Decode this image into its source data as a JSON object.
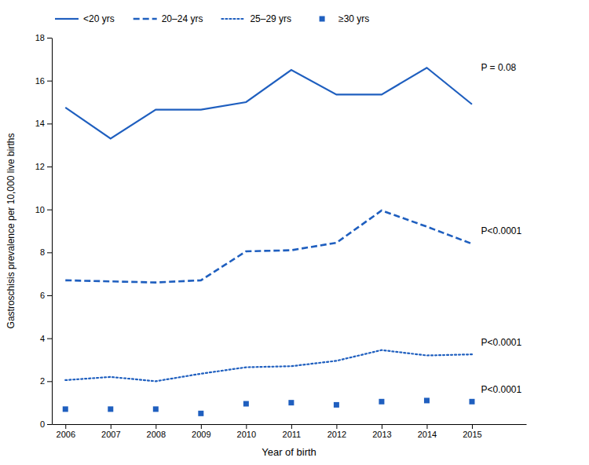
{
  "chart_data": {
    "type": "line",
    "x": [
      2006,
      2007,
      2008,
      2009,
      2010,
      2011,
      2012,
      2013,
      2014,
      2015
    ],
    "series": [
      {
        "name": "<20 yrs",
        "color": "#1f5fbf",
        "line_style": "solid",
        "values": [
          14.75,
          13.3,
          14.65,
          14.65,
          15.0,
          16.5,
          15.35,
          15.35,
          16.6,
          14.9
        ]
      },
      {
        "name": "20–24 yrs",
        "color": "#1f5fbf",
        "line_style": "dashed",
        "values": [
          6.7,
          6.65,
          6.6,
          6.7,
          8.05,
          8.1,
          8.45,
          9.95,
          9.2,
          8.4
        ]
      },
      {
        "name": "25–29 yrs",
        "color": "#1f5fbf",
        "line_style": "dotted",
        "values": [
          2.05,
          2.2,
          2.0,
          2.35,
          2.65,
          2.7,
          2.95,
          3.45,
          3.2,
          3.25
        ]
      },
      {
        "name": "≥30 yrs",
        "color": "#1f5fbf",
        "line_style": "none",
        "marker": "square",
        "values": [
          0.7,
          0.7,
          0.7,
          0.5,
          0.95,
          1.0,
          0.9,
          1.05,
          1.1,
          1.05
        ]
      }
    ],
    "xlabel": "Year of birth",
    "ylabel": "Gastroschisis prevalence per 10,000 live births",
    "xlim": [
      2005.7,
      2016.2
    ],
    "xticks": [
      2006,
      2007,
      2008,
      2009,
      2010,
      2011,
      2012,
      2013,
      2014,
      2015
    ],
    "ylim": [
      0,
      18
    ],
    "yticks": [
      0,
      2,
      4,
      6,
      8,
      10,
      12,
      14,
      16,
      18
    ],
    "annotations": [
      {
        "text": "P = 0.08",
        "x": 2015.2,
        "y": 16.6
      },
      {
        "text": "P<0.0001",
        "x": 2015.2,
        "y": 9.0
      },
      {
        "text": "P<0.0001",
        "x": 2015.2,
        "y": 3.8
      },
      {
        "text": "P<0.0001",
        "x": 2015.2,
        "y": 1.6
      }
    ],
    "legend": "upper-left",
    "grid": false
  }
}
